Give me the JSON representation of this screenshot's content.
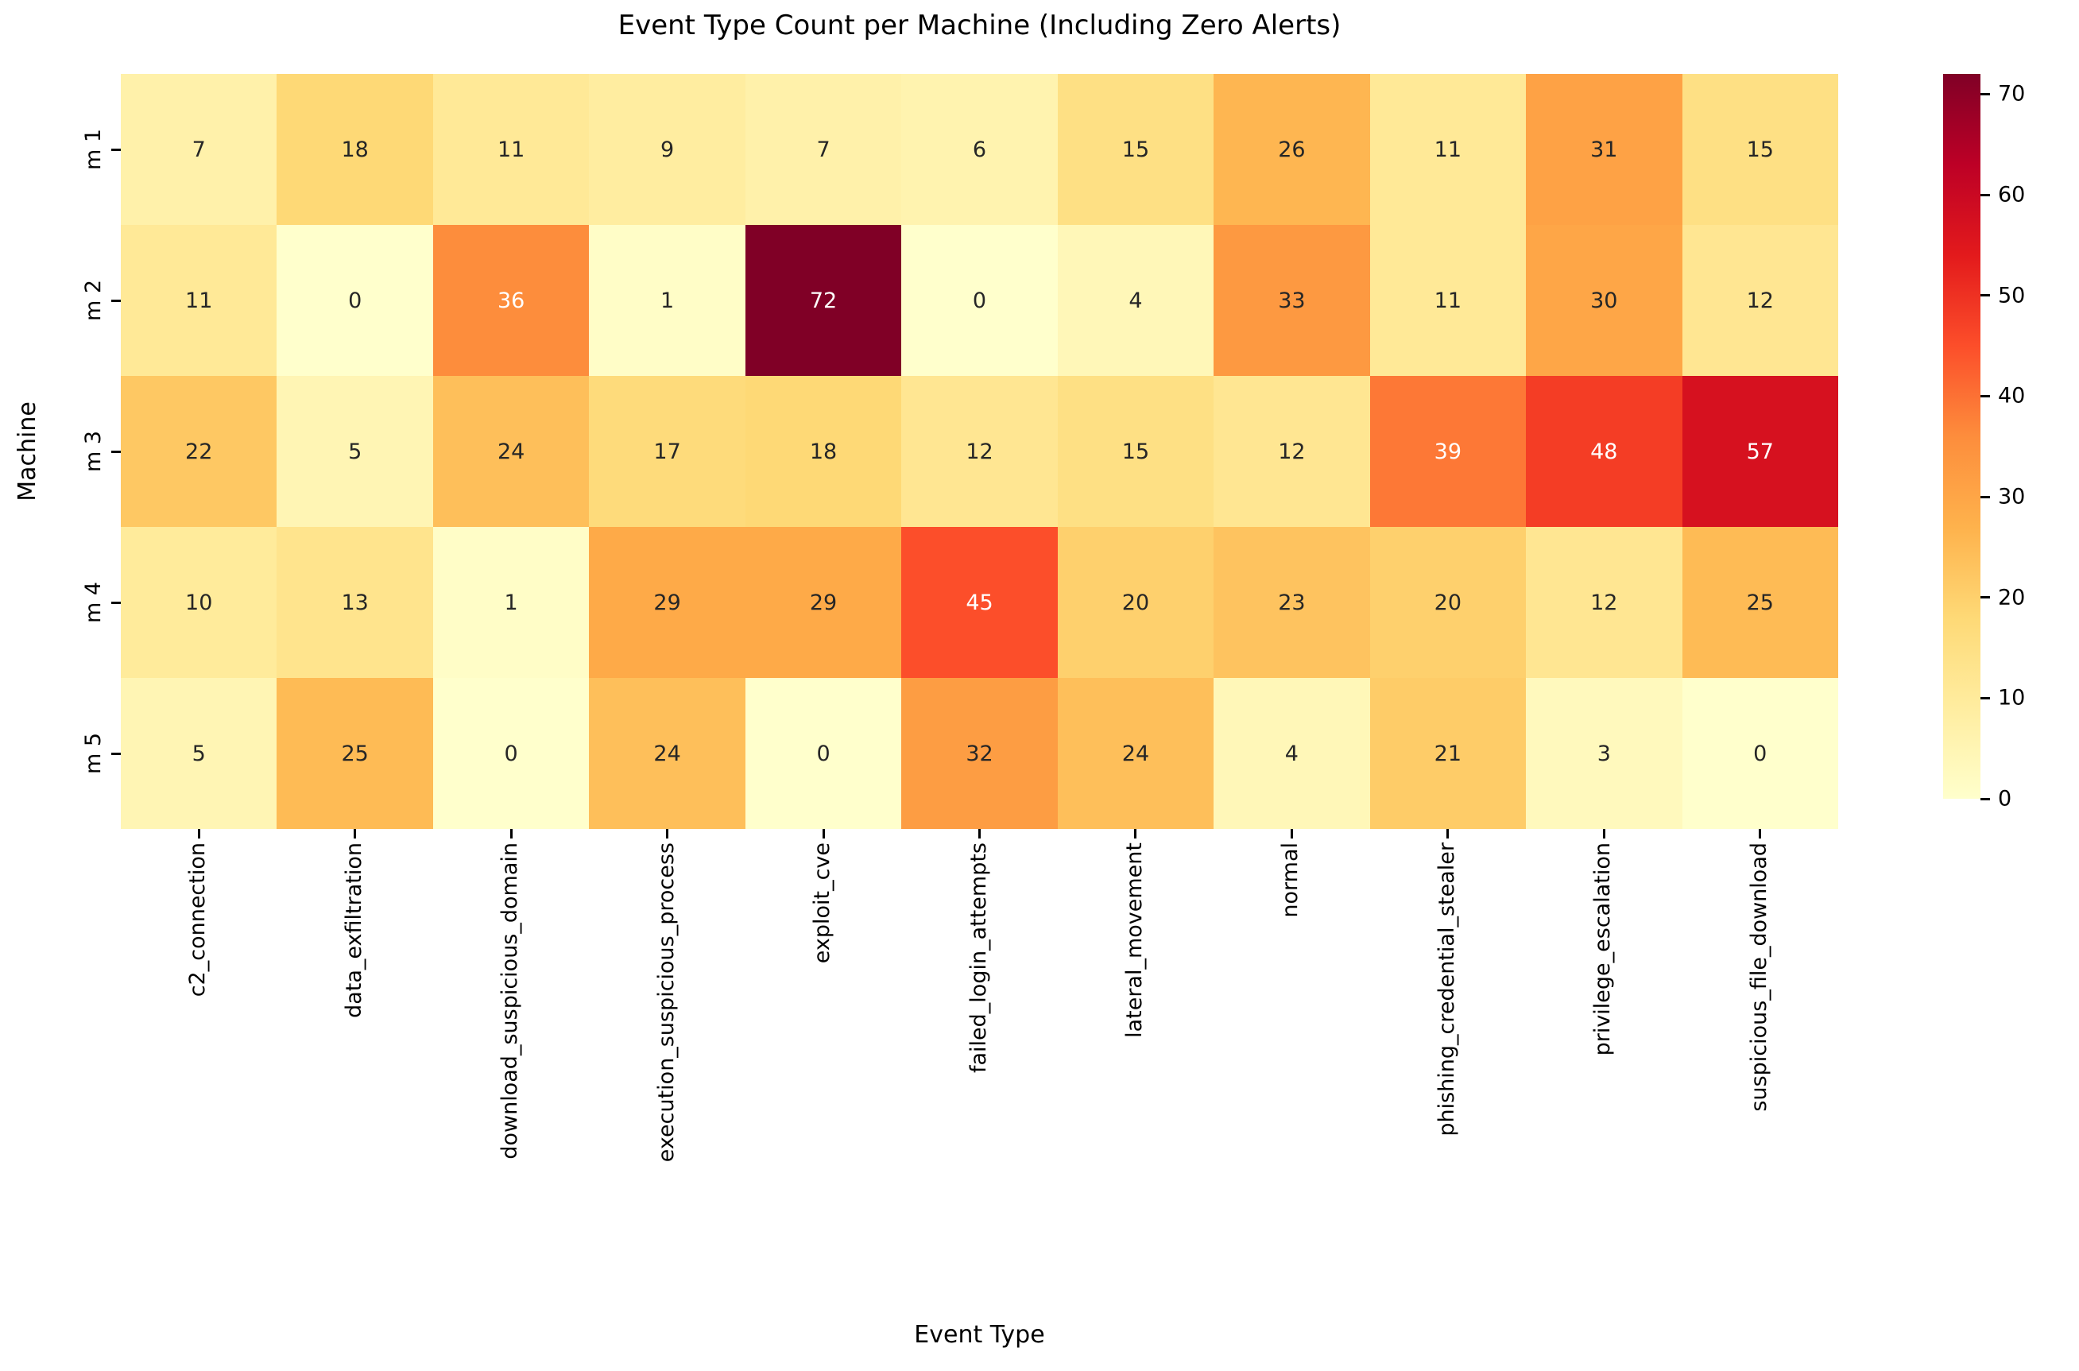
{
  "figure": {
    "title": "Event Type Count per Machine (Including Zero Alerts)",
    "xlabel": "Event Type",
    "ylabel": "Machine"
  },
  "chart_data": {
    "type": "heatmap",
    "title": "Event Type Count per Machine (Including Zero Alerts)",
    "xlabel": "Event Type",
    "ylabel": "Machine",
    "x_categories": [
      "c2_connection",
      "data_exfiltration",
      "download_suspicious_domain",
      "execution_suspicious_process",
      "exploit_cve",
      "failed_login_attempts",
      "lateral_movement",
      "normal",
      "phishing_credential_stealer",
      "privilege_escalation",
      "suspicious_file_download"
    ],
    "y_categories": [
      "m 1",
      "m 2",
      "m 3",
      "m 4",
      "m 5"
    ],
    "values": [
      [
        7,
        18,
        11,
        9,
        7,
        6,
        15,
        26,
        11,
        31,
        15
      ],
      [
        11,
        0,
        36,
        1,
        72,
        0,
        4,
        33,
        11,
        30,
        12
      ],
      [
        22,
        5,
        24,
        17,
        18,
        12,
        15,
        12,
        39,
        48,
        57
      ],
      [
        10,
        13,
        1,
        29,
        29,
        45,
        20,
        23,
        20,
        12,
        25
      ],
      [
        5,
        25,
        0,
        24,
        0,
        32,
        24,
        4,
        21,
        3,
        0
      ]
    ],
    "annotated": true,
    "grid": false,
    "vmin": 0,
    "vmax": 72,
    "colormap": "YlOrRd",
    "colormap_stops": [
      "#ffffcc",
      "#ffeda0",
      "#fed976",
      "#feb24c",
      "#fd8d3c",
      "#fc4e2a",
      "#e31a1c",
      "#bd0026",
      "#800026"
    ],
    "colorbar_ticks": [
      0,
      10,
      20,
      30,
      40,
      50,
      60,
      70
    ],
    "colorbar_position": "right"
  }
}
